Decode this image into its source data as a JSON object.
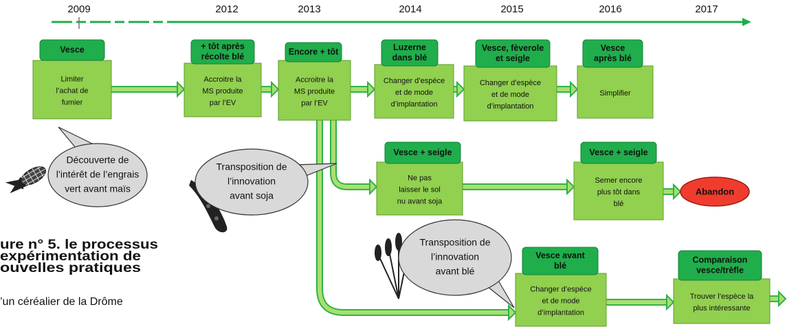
{
  "timeline": {
    "years": [
      "2009",
      "2012",
      "2013",
      "2014",
      "2015",
      "2016",
      "2017"
    ]
  },
  "boxes": [
    {
      "header": [
        "Vesce"
      ],
      "body": [
        "Limiter",
        "l’achat de",
        "fumier"
      ]
    },
    {
      "header": [
        "+ tôt après",
        "récolte blé"
      ],
      "body": [
        "Accroitre la",
        "MS produite",
        "par l’EV"
      ]
    },
    {
      "header": [
        "Encore + tôt"
      ],
      "body": [
        "Accroitre la",
        "MS produite",
        "par l’EV"
      ]
    },
    {
      "header": [
        "Luzerne",
        "dans blé"
      ],
      "body": [
        "Changer d’espèce",
        "et de mode",
        "d’implantation"
      ]
    },
    {
      "header": [
        "Vesce, fèverole",
        "et seigle"
      ],
      "body": [
        "Changer d’espèce",
        "et de mode",
        "d’implantation"
      ]
    },
    {
      "header": [
        "Vesce",
        "après blé"
      ],
      "body": [
        "Simplifier"
      ]
    },
    {
      "header": [
        "Vesce + seigle"
      ],
      "body": [
        "Ne pas",
        "laisser le sol",
        "nu avant soja"
      ]
    },
    {
      "header": [
        "Vesce + seigle"
      ],
      "body": [
        "Semer encore",
        "plus tôt dans",
        "blé"
      ]
    },
    {
      "header": [
        "Vesce avant",
        "blé"
      ],
      "body": [
        "Changer d’espèce",
        "et de mode",
        "d’implantation"
      ]
    },
    {
      "header": [
        "Comparaison",
        "vesce/trèfle"
      ],
      "body": [
        "Trouver l’espèce la",
        "plus intéressante"
      ]
    }
  ],
  "abandon": "Abandon",
  "bubbles": [
    {
      "lines": [
        "Découverte de",
        "l’intérêt de l’engrais",
        "vert avant maïs"
      ]
    },
    {
      "lines": [
        "Transposition de",
        "l’innovation",
        "avant soja"
      ]
    },
    {
      "lines": [
        "Transposition de",
        "l’innovation",
        "avant blé"
      ]
    }
  ],
  "caption": {
    "title": [
      "ure n° 5. le processus",
      "expérimentation de",
      "ouvelles pratiques"
    ],
    "subtitle": "’un céréalier de la Drôme"
  }
}
